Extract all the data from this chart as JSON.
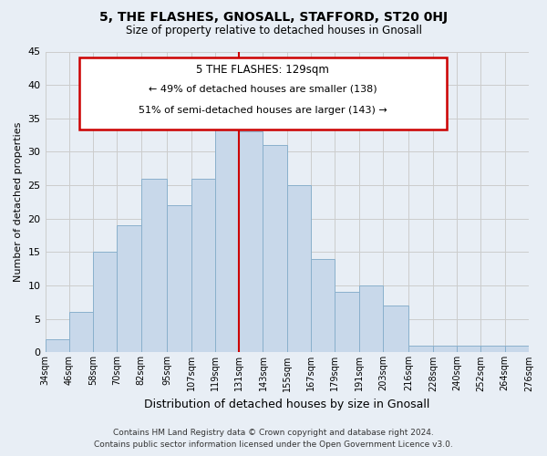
{
  "title": "5, THE FLASHES, GNOSALL, STAFFORD, ST20 0HJ",
  "subtitle": "Size of property relative to detached houses in Gnosall",
  "xlabel": "Distribution of detached houses by size in Gnosall",
  "ylabel": "Number of detached properties",
  "footer_line1": "Contains HM Land Registry data © Crown copyright and database right 2024.",
  "footer_line2": "Contains public sector information licensed under the Open Government Licence v3.0.",
  "bin_labels": [
    "34sqm",
    "46sqm",
    "58sqm",
    "70sqm",
    "82sqm",
    "95sqm",
    "107sqm",
    "119sqm",
    "131sqm",
    "143sqm",
    "155sqm",
    "167sqm",
    "179sqm",
    "191sqm",
    "203sqm",
    "216sqm",
    "228sqm",
    "240sqm",
    "252sqm",
    "264sqm",
    "276sqm"
  ],
  "bin_edges": [
    34,
    46,
    58,
    70,
    82,
    95,
    107,
    119,
    131,
    143,
    155,
    167,
    179,
    191,
    203,
    216,
    228,
    240,
    252,
    264,
    276
  ],
  "bar_heights": [
    2,
    6,
    15,
    19,
    26,
    22,
    26,
    34,
    33,
    31,
    25,
    14,
    9,
    10,
    7,
    1,
    1,
    1,
    1,
    1
  ],
  "bar_color": "#c8d8ea",
  "bar_edge_color": "#8ab0cc",
  "reference_line_x": 131,
  "annotation_title": "5 THE FLASHES: 129sqm",
  "annotation_line1": "← 49% of detached houses are smaller (138)",
  "annotation_line2": "51% of semi-detached houses are larger (143) →",
  "annotation_box_color": "#ffffff",
  "annotation_box_edge": "#cc0000",
  "ref_line_color": "#cc0000",
  "ylim": [
    0,
    45
  ],
  "yticks": [
    0,
    5,
    10,
    15,
    20,
    25,
    30,
    35,
    40,
    45
  ],
  "grid_color": "#cccccc",
  "background_color": "#e8eef5"
}
